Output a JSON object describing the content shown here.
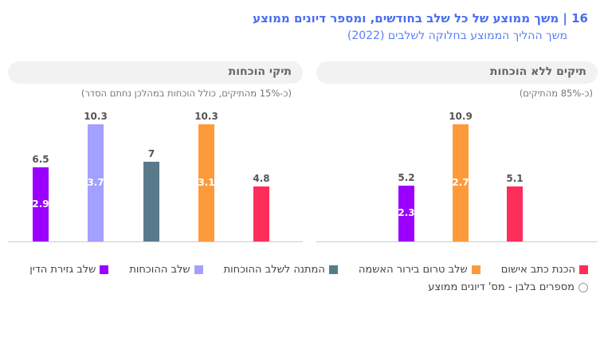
{
  "title": "16 | משך ממוצע של כל שלב בחודשים, ומספר דיונים ממוצע",
  "subtitle": "משך ההליך הממוצע בחלוקה לשלבים (2022)",
  "colors": {
    "purple": "#9b00ff",
    "lavender": "#a3a0ff",
    "teal": "#5a7a8c",
    "orange": "#ff9a3c",
    "red": "#ff2d5a"
  },
  "chart_data": [
    {
      "type": "bar",
      "title": "תיקים ללא הוכחות",
      "subtitle": "(כ-85% מהתיקים)",
      "categories": [
        "הכנת כתב אישום",
        "שלב טרום בירור האשמה",
        "שלב גזירת הדין"
      ],
      "values": [
        5.1,
        10.9,
        5.2
      ],
      "inner_values": [
        null,
        2.7,
        2.3
      ],
      "colors": [
        "#ff2d5a",
        "#ff9a3c",
        "#9b00ff"
      ]
    },
    {
      "type": "bar",
      "title": "תיקי הוכחות",
      "subtitle": "(כ-15% מהתיקים, כולל הוכחות במהלכן נחתם הסדר)",
      "categories": [
        "הכנת כתב אישום",
        "שלב טרום בירור האשמה",
        "המתנה לשלב ההוכחות",
        "שלב ההוכחות",
        "שלב גזירת הדין"
      ],
      "values": [
        4.8,
        10.3,
        7,
        10.3,
        6.5
      ],
      "inner_values": [
        null,
        3.1,
        null,
        3.7,
        2.9
      ],
      "colors": [
        "#ff2d5a",
        "#ff9a3c",
        "#5a7a8c",
        "#a3a0ff",
        "#9b00ff"
      ]
    }
  ],
  "legend": [
    {
      "label": "הכנת כתב אישום",
      "color": "#ff2d5a"
    },
    {
      "label": "שלב טרום בירור האשמה",
      "color": "#ff9a3c"
    },
    {
      "label": "המתנה לשלב ההוכחות",
      "color": "#5a7a8c"
    },
    {
      "label": "שלב ההוכחות",
      "color": "#a3a0ff"
    },
    {
      "label": "שלב גזירת הדין",
      "color": "#9b00ff"
    }
  ],
  "legend_note": "מספרים בלבן - מס' דיונים ממוצע"
}
